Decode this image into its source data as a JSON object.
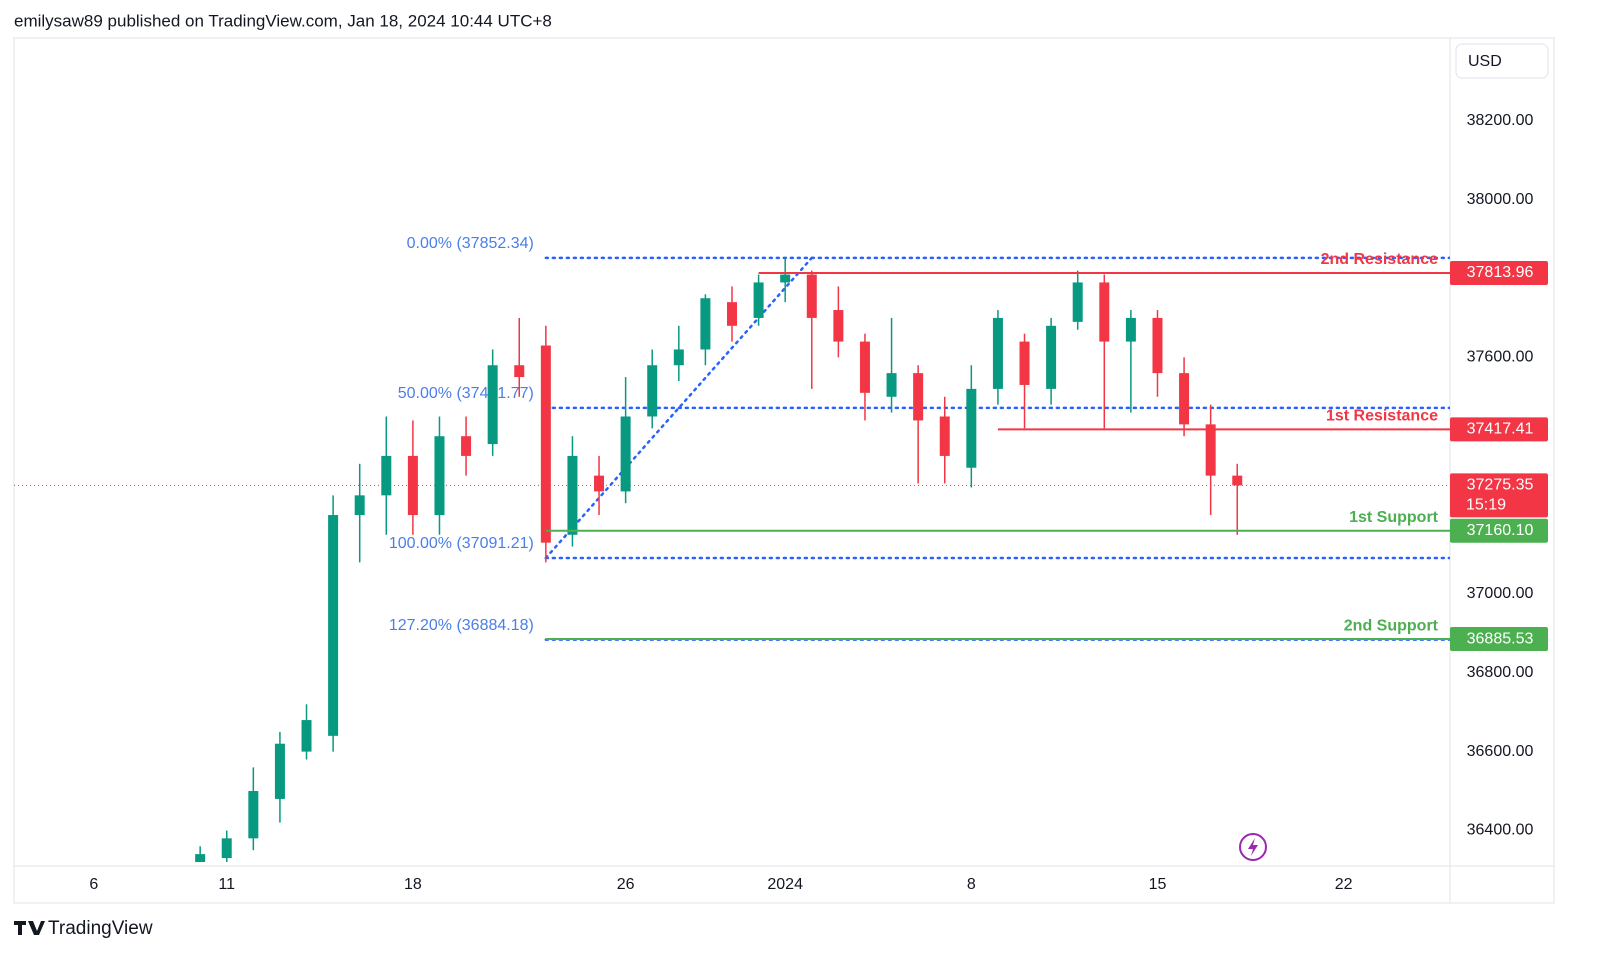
{
  "header": "emilysaw89 published on TradingView.com, Jan 18, 2024 10:44 UTC+8",
  "footer": "TradingView",
  "chart_data": {
    "type": "candlestick",
    "currency": "USD",
    "up_color": "#089981",
    "down_color": "#f23645",
    "xlim": [
      "2023-12-03",
      "2024-01-26"
    ],
    "xticks": [
      {
        "value": "2023-12-06",
        "label": "6"
      },
      {
        "value": "2023-12-11",
        "label": "11"
      },
      {
        "value": "2023-12-18",
        "label": "18"
      },
      {
        "value": "2023-12-26",
        "label": "26"
      },
      {
        "value": "2024-01-01",
        "label": "2024"
      },
      {
        "value": "2024-01-08",
        "label": "8"
      },
      {
        "value": "2024-01-15",
        "label": "15"
      },
      {
        "value": "2024-01-22",
        "label": "22"
      }
    ],
    "ylim": [
      36320,
      38410
    ],
    "yticks": [
      {
        "value": 38200,
        "label": "38200.00"
      },
      {
        "value": 38000,
        "label": "38000.00"
      },
      {
        "value": 37600,
        "label": "37600.00"
      },
      {
        "value": 37000,
        "label": "37000.00"
      },
      {
        "value": 36800,
        "label": "36800.00"
      },
      {
        "value": 36600,
        "label": "36600.00"
      },
      {
        "value": 36400,
        "label": "36400.00"
      }
    ],
    "x": [
      "2023-12-10",
      "2023-12-11",
      "2023-12-12",
      "2023-12-13",
      "2023-12-14",
      "2023-12-15",
      "2023-12-16",
      "2023-12-17",
      "2023-12-18",
      "2023-12-19",
      "2023-12-20",
      "2023-12-21",
      "2023-12-22",
      "2023-12-23",
      "2023-12-24",
      "2023-12-25",
      "2023-12-26",
      "2023-12-27",
      "2023-12-28",
      "2023-12-29",
      "2023-12-30",
      "2023-12-31",
      "2024-01-01",
      "2024-01-02",
      "2024-01-03",
      "2024-01-04",
      "2024-01-05",
      "2024-01-06",
      "2024-01-07",
      "2024-01-08",
      "2024-01-09",
      "2024-01-10",
      "2024-01-11",
      "2024-01-12",
      "2024-01-13",
      "2024-01-14",
      "2024-01-15",
      "2024-01-16",
      "2024-01-17",
      "2024-01-18"
    ],
    "open": [
      36320,
      36330,
      36380,
      36480,
      36600,
      36640,
      37200,
      37250,
      37350,
      37200,
      37400,
      37380,
      37580,
      37630,
      37150,
      37300,
      37260,
      37450,
      37580,
      37620,
      37740,
      37700,
      37790,
      37810,
      37720,
      37640,
      37500,
      37560,
      37450,
      37320,
      37520,
      37640,
      37520,
      37690,
      37790,
      37640,
      37700,
      37560,
      37430,
      37300
    ],
    "high": [
      36360,
      36400,
      36560,
      36650,
      36720,
      37250,
      37330,
      37450,
      37440,
      37450,
      37450,
      37620,
      37700,
      37680,
      37400,
      37350,
      37550,
      37620,
      37680,
      37760,
      37780,
      37810,
      37852,
      37820,
      37780,
      37660,
      37700,
      37580,
      37500,
      37580,
      37720,
      37660,
      37700,
      37820,
      37810,
      37720,
      37720,
      37600,
      37480,
      37330
    ],
    "low": [
      36300,
      36320,
      36350,
      36420,
      36580,
      36600,
      37080,
      37150,
      37150,
      37150,
      37300,
      37350,
      37500,
      37080,
      37120,
      37200,
      37230,
      37420,
      37540,
      37580,
      37640,
      37680,
      37740,
      37520,
      37600,
      37440,
      37460,
      37280,
      37280,
      37270,
      37480,
      37420,
      37480,
      37670,
      37420,
      37460,
      37500,
      37400,
      37200,
      37150
    ],
    "close": [
      36340,
      36380,
      36500,
      36620,
      36680,
      37200,
      37250,
      37350,
      37200,
      37400,
      37350,
      37580,
      37550,
      37130,
      37350,
      37260,
      37450,
      37580,
      37620,
      37750,
      37680,
      37790,
      37810,
      37700,
      37640,
      37510,
      37560,
      37440,
      37350,
      37520,
      37700,
      37530,
      37680,
      37790,
      37640,
      37700,
      37560,
      37430,
      37300,
      37275.35
    ],
    "fib_start": "2023-12-23",
    "fib_levels": [
      {
        "label": "0.00% (37852.34)",
        "value": 37852.34
      },
      {
        "label": "50.00% (37471.77)",
        "value": 37471.77
      },
      {
        "label": "100.00% (37091.21)",
        "value": 37091.21
      },
      {
        "label": "127.20% (36884.18)",
        "value": 36884.18
      }
    ],
    "fib_color": "#2962ff",
    "trend_line": {
      "x": [
        "2023-12-23",
        "2024-01-02"
      ],
      "y": [
        37091.21,
        37852.34
      ]
    },
    "levels": [
      {
        "name": "2nd Resistance",
        "price": 37813.96,
        "price_label": "37813.96",
        "start": "2023-12-31",
        "color": "#f23645"
      },
      {
        "name": "1st Resistance",
        "price": 37417.41,
        "price_label": "37417.41",
        "start": "2024-01-09",
        "color": "#f23645"
      },
      {
        "name": "1st Support",
        "price": 37160.1,
        "price_label": "37160.10",
        "start": "2023-12-23",
        "color": "#4caf50"
      },
      {
        "name": "2nd Support",
        "price": 36885.53,
        "price_label": "36885.53",
        "start": "2023-12-23",
        "color": "#4caf50"
      }
    ],
    "last_price": {
      "value": 37275.35,
      "countdown": "15:19",
      "color": "#f23645"
    }
  }
}
